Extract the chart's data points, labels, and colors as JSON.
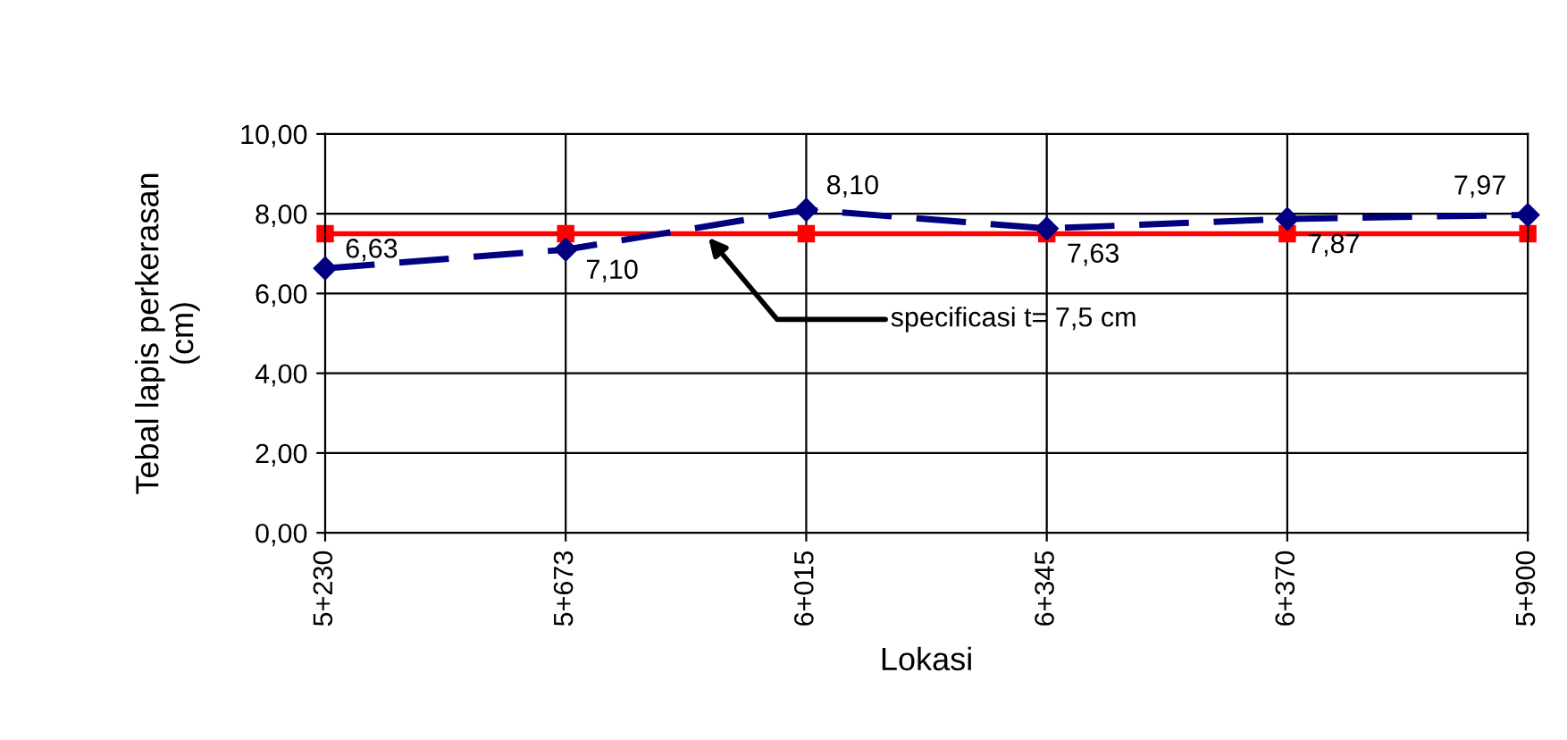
{
  "chart_data": {
    "type": "line",
    "xlabel": "Lokasi",
    "ylabel": "Tebal lapis perkerasan\n(cm)",
    "categories": [
      "5+230",
      "5+673",
      "6+015",
      "6+345",
      "6+370",
      "5+900"
    ],
    "series": [
      {
        "color": "#000080",
        "values": [
          6.63,
          7.1,
          8.1,
          7.63,
          7.87,
          7.97
        ],
        "marker": "diamond",
        "line_style": "dashed",
        "value_labels": [
          "6,63",
          "7,10",
          "8,10",
          "7,63",
          "7,87",
          "7,97"
        ]
      },
      {
        "color": "#ff0000",
        "values": [
          7.5,
          7.5,
          7.5,
          7.5,
          7.5,
          7.5
        ],
        "marker": "square",
        "line_style": "solid"
      }
    ],
    "ylim": [
      0,
      10
    ],
    "yticks": [
      {
        "value": 0,
        "label": "0,00"
      },
      {
        "value": 2,
        "label": "2,00"
      },
      {
        "value": 4,
        "label": "4,00"
      },
      {
        "value": 6,
        "label": "6,00"
      },
      {
        "value": 8,
        "label": "8,00"
      },
      {
        "value": 10,
        "label": "10,00"
      }
    ],
    "grid": true,
    "legend": false,
    "annotations": [
      {
        "text": "specificasi t= 7,5 cm",
        "y": 7.5
      }
    ]
  }
}
